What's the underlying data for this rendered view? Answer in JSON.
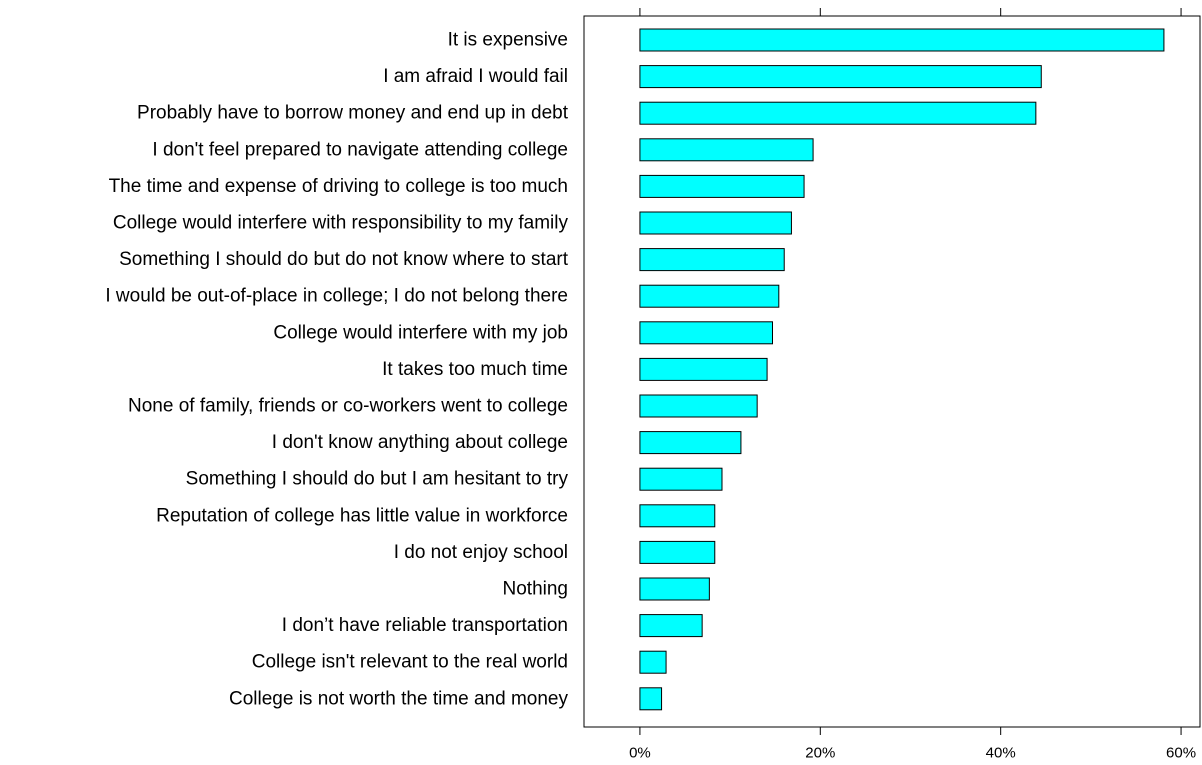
{
  "chart_data": {
    "type": "bar",
    "orientation": "horizontal",
    "categories": [
      "It is expensive",
      "I am afraid I would fail",
      "Probably have to borrow money and end up in debt",
      "I don't feel prepared to navigate attending college",
      "The time and expense of driving to college is too much",
      "College would interfere with responsibility to my family",
      "Something I should do but do not know where to start",
      "I would be out-of-place in college; I do not belong there",
      "College would interfere with my job",
      "It takes too much time",
      "None of family, friends or co-workers went to college",
      "I don't know anything about college",
      "Something I should do but I am hesitant to try",
      "Reputation of  college has little value in workforce",
      "I do not enjoy school",
      "Nothing",
      "I don’t have reliable transportation",
      "College isn't relevant to the real world",
      "College is not worth the time and money"
    ],
    "values": [
      58.1,
      44.5,
      43.9,
      19.2,
      18.2,
      16.8,
      16.0,
      15.4,
      14.7,
      14.1,
      13.0,
      11.2,
      9.1,
      8.3,
      8.3,
      7.7,
      6.9,
      2.9,
      2.4
    ],
    "xlim": [
      -6.2,
      62.1
    ],
    "xticks": [
      0,
      20,
      40,
      60
    ],
    "xtick_labels": [
      "0%",
      "20%",
      "40%",
      "60%"
    ],
    "grid": false,
    "bar_color": "#00FFFF",
    "bar_edge_color": "#000000"
  }
}
